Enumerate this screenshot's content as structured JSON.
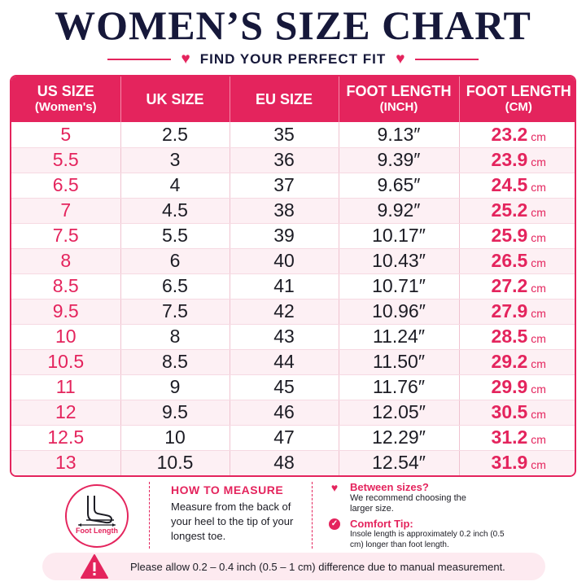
{
  "header": {
    "title": "WOMEN’S SIZE CHART",
    "subtitle": "FIND YOUR PERFECT FIT"
  },
  "table": {
    "columns": [
      {
        "label": "US SIZE",
        "sub": "(Women's)"
      },
      {
        "label": "UK SIZE",
        "sub": ""
      },
      {
        "label": "EU SIZE",
        "sub": ""
      },
      {
        "label": "FOOT LENGTH",
        "sub": "(INCH)"
      },
      {
        "label": "FOOT LENGTH",
        "sub": "(CM)"
      }
    ],
    "cm_unit": "cm",
    "rows": [
      [
        "5",
        "2.5",
        "35",
        "9.13″",
        "23.2"
      ],
      [
        "5.5",
        "3",
        "36",
        "9.39″",
        "23.9"
      ],
      [
        "6.5",
        "4",
        "37",
        "9.65″",
        "24.5"
      ],
      [
        "7",
        "4.5",
        "38",
        "9.92″",
        "25.2"
      ],
      [
        "7.5",
        "5.5",
        "39",
        "10.17″",
        "25.9"
      ],
      [
        "8",
        "6",
        "40",
        "10.43″",
        "26.5"
      ],
      [
        "8.5",
        "6.5",
        "41",
        "10.71″",
        "27.2"
      ],
      [
        "9.5",
        "7.5",
        "42",
        "10.96″",
        "27.9"
      ],
      [
        "10",
        "8",
        "43",
        "11.24″",
        "28.5"
      ],
      [
        "10.5",
        "8.5",
        "44",
        "11.50″",
        "29.2"
      ],
      [
        "11",
        "9",
        "45",
        "11.76″",
        "29.9"
      ],
      [
        "12",
        "9.5",
        "46",
        "12.05″",
        "30.5"
      ],
      [
        "12.5",
        "10",
        "47",
        "12.29″",
        "31.2"
      ],
      [
        "13",
        "10.5",
        "48",
        "12.54″",
        "31.9"
      ]
    ]
  },
  "how_to_measure": {
    "icon_label": "Foot Length",
    "title": "HOW TO MEASURE",
    "text": "Measure from the back of your heel to the tip of your longest toe."
  },
  "tips": {
    "between_title": "Between sizes?",
    "between_text": "We recommend choosing the larger size.",
    "comfort_title": "Comfort Tip:",
    "comfort_text": "Insole length is approximately 0.2 inch (0.5 cm) longer than foot length."
  },
  "notice": {
    "text": "Please allow 0.2 – 0.4 inch (0.5 – 1 cm) difference due to manual measurement."
  },
  "icons": {
    "heart": "heart-icon",
    "check": "check-circle-icon",
    "warning": "warning-triangle-icon",
    "foot": "foot-icon"
  },
  "colors": {
    "accent": "#e4245d",
    "navy": "#16183a"
  }
}
